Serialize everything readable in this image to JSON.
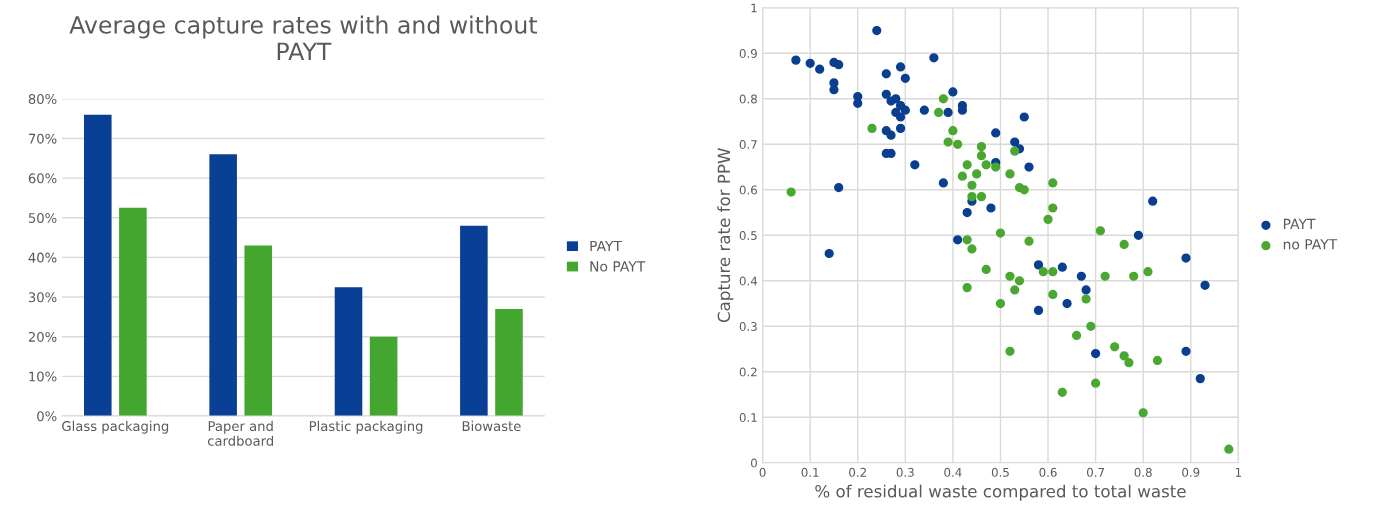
{
  "chart_data": [
    {
      "type": "bar",
      "title": "Average capture rates with and without\nPAYT",
      "categories": [
        "Glass packaging",
        "Paper and\ncardboard",
        "Plastic packaging",
        "Biowaste"
      ],
      "series": [
        {
          "name": "PAYT",
          "color": "#0a3f96",
          "values": [
            76,
            66,
            32.5,
            48
          ]
        },
        {
          "name": "No PAYT",
          "color": "#43a62e",
          "values": [
            52.5,
            43,
            20,
            27
          ]
        }
      ],
      "ylim": [
        0,
        80
      ],
      "yticks": [
        {
          "value": 0,
          "label": "0%"
        },
        {
          "value": 10,
          "label": "10%"
        },
        {
          "value": 20,
          "label": "20%"
        },
        {
          "value": 30,
          "label": "30%"
        },
        {
          "value": 40,
          "label": "40%"
        },
        {
          "value": 50,
          "label": "50%"
        },
        {
          "value": 60,
          "label": "60%"
        },
        {
          "value": 70,
          "label": "70%"
        },
        {
          "value": 80,
          "label": "80%"
        }
      ],
      "grid": "y",
      "legend": "right"
    },
    {
      "type": "scatter",
      "xlabel": "% of residual waste compared to total waste",
      "ylabel": "Capture rate for PPW",
      "marker": "circle",
      "series": [
        {
          "name": "PAYT",
          "color": "#0a3f8f",
          "x": [
            0.07,
            0.1,
            0.12,
            0.15,
            0.16,
            0.15,
            0.15,
            0.16,
            0.14,
            0.2,
            0.2,
            0.24,
            0.26,
            0.26,
            0.28,
            0.27,
            0.29,
            0.3,
            0.29,
            0.3,
            0.28,
            0.26,
            0.27,
            0.29,
            0.29,
            0.26,
            0.27,
            0.32,
            0.34,
            0.36,
            0.4,
            0.39,
            0.42,
            0.42,
            0.38,
            0.41,
            0.43,
            0.44,
            0.49,
            0.48,
            0.49,
            0.53,
            0.55,
            0.54,
            0.56,
            0.58,
            0.58,
            0.63,
            0.64,
            0.67,
            0.68,
            0.7,
            0.79,
            0.82,
            0.89,
            0.89,
            0.92,
            0.93
          ],
          "values": [
            0.885,
            0.878,
            0.865,
            0.88,
            0.875,
            0.835,
            0.82,
            0.605,
            0.46,
            0.805,
            0.79,
            0.95,
            0.855,
            0.81,
            0.8,
            0.795,
            0.87,
            0.845,
            0.785,
            0.775,
            0.77,
            0.73,
            0.72,
            0.735,
            0.76,
            0.68,
            0.68,
            0.655,
            0.775,
            0.89,
            0.815,
            0.77,
            0.775,
            0.785,
            0.615,
            0.49,
            0.55,
            0.575,
            0.725,
            0.56,
            0.66,
            0.705,
            0.76,
            0.69,
            0.65,
            0.435,
            0.335,
            0.43,
            0.35,
            0.41,
            0.38,
            0.24,
            0.5,
            0.575,
            0.45,
            0.245,
            0.185,
            0.39
          ]
        },
        {
          "name": "no PAYT",
          "color": "#4aa832",
          "x": [
            0.06,
            0.23,
            0.38,
            0.37,
            0.39,
            0.4,
            0.41,
            0.43,
            0.42,
            0.44,
            0.44,
            0.46,
            0.46,
            0.46,
            0.47,
            0.45,
            0.49,
            0.52,
            0.53,
            0.54,
            0.55,
            0.5,
            0.43,
            0.44,
            0.43,
            0.47,
            0.5,
            0.52,
            0.53,
            0.54,
            0.52,
            0.56,
            0.59,
            0.6,
            0.61,
            0.61,
            0.61,
            0.61,
            0.63,
            0.66,
            0.68,
            0.69,
            0.7,
            0.71,
            0.72,
            0.74,
            0.76,
            0.76,
            0.77,
            0.78,
            0.8,
            0.81,
            0.83,
            0.98
          ],
          "values": [
            0.595,
            0.735,
            0.8,
            0.77,
            0.705,
            0.73,
            0.7,
            0.655,
            0.63,
            0.61,
            0.585,
            0.585,
            0.695,
            0.675,
            0.655,
            0.635,
            0.65,
            0.635,
            0.685,
            0.605,
            0.6,
            0.505,
            0.49,
            0.47,
            0.385,
            0.425,
            0.35,
            0.41,
            0.38,
            0.4,
            0.245,
            0.487,
            0.42,
            0.535,
            0.615,
            0.56,
            0.42,
            0.37,
            0.155,
            0.28,
            0.36,
            0.3,
            0.175,
            0.51,
            0.41,
            0.255,
            0.48,
            0.235,
            0.22,
            0.41,
            0.11,
            0.42,
            0.225,
            0.03
          ]
        }
      ],
      "xlim": [
        0,
        1
      ],
      "ylim": [
        0,
        1
      ],
      "xticks": [
        0,
        0.1,
        0.2,
        0.3,
        0.4,
        0.5,
        0.6,
        0.7,
        0.8,
        0.9,
        1
      ],
      "yticks": [
        0,
        0.1,
        0.2,
        0.3,
        0.4,
        0.5,
        0.6,
        0.7,
        0.8,
        0.9,
        1
      ],
      "grid": true,
      "legend": "right"
    }
  ]
}
